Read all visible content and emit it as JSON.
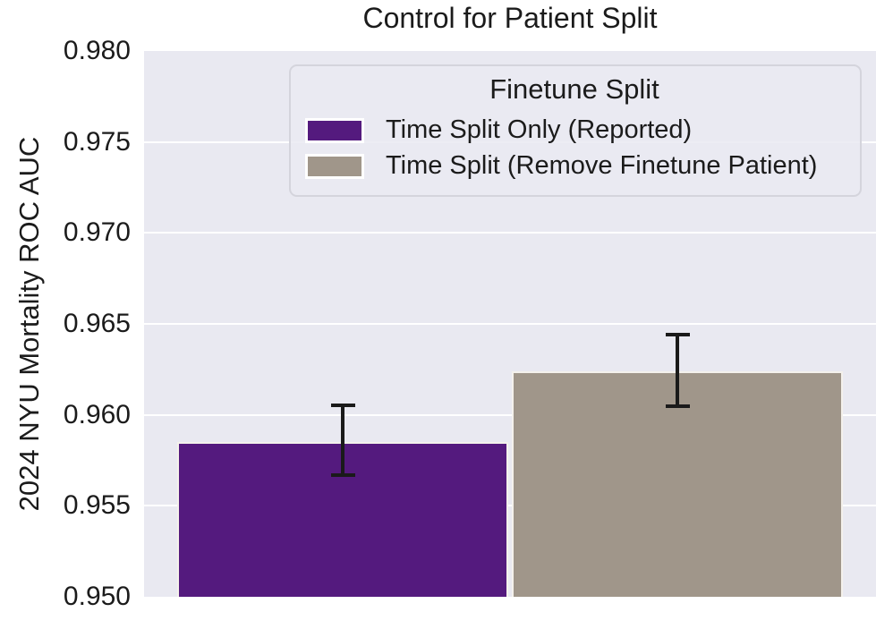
{
  "chart_data": {
    "type": "bar",
    "title": "Control for Patient Split",
    "xlabel": "",
    "ylabel": "2024 NYU Mortality ROC AUC",
    "ylim": [
      0.95,
      0.98
    ],
    "grid": true,
    "legend": {
      "title": "Finetune Split",
      "position": "upper right"
    },
    "yticks": [
      {
        "value": 0.95,
        "label": "0.950"
      },
      {
        "value": 0.955,
        "label": "0.955"
      },
      {
        "value": 0.96,
        "label": "0.960"
      },
      {
        "value": 0.965,
        "label": "0.965"
      },
      {
        "value": 0.97,
        "label": "0.970"
      },
      {
        "value": 0.975,
        "label": "0.975"
      },
      {
        "value": 0.98,
        "label": "0.980"
      }
    ],
    "series": [
      {
        "name": "Time Split Only (Reported)",
        "value": 0.9585,
        "ci": [
          0.9566,
          0.9606
        ],
        "color": "#541A7E"
      },
      {
        "name": "Time Split (Remove Finetune Patient)",
        "value": 0.9624,
        "ci": [
          0.9604,
          0.9645
        ],
        "color": "#A0968A"
      }
    ]
  },
  "colors": {
    "figure_bg": "#FFFFFF",
    "plot_bg": "#E9E9F1",
    "grid": "#FFFFFF",
    "text": "#1B1B1B",
    "error_bar": "#1A1A1A",
    "legend_border": "#D4D4DC",
    "bar_edge": "#F4F1EC"
  }
}
